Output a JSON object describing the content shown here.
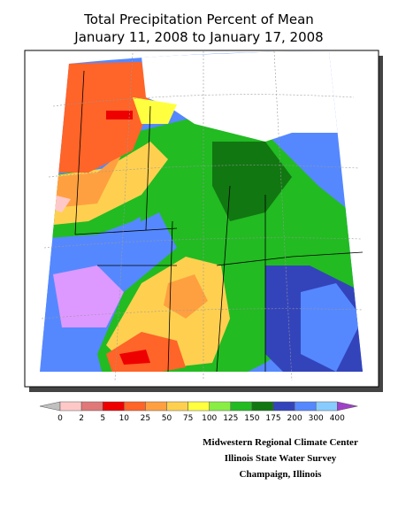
{
  "title": {
    "line1": "Total Precipitation Percent of Mean",
    "line2": "January 11, 2008 to January 17, 2008"
  },
  "legend": {
    "labels": [
      "0",
      "2",
      "5",
      "10",
      "25",
      "50",
      "75",
      "100",
      "125",
      "150",
      "175",
      "200",
      "300",
      "400"
    ],
    "below_color": "#c0c0c0",
    "above_color": "#a040c8",
    "colors": [
      "#ffc8c8",
      "#e07878",
      "#ee0000",
      "#ff6428",
      "#ffa040",
      "#ffd050",
      "#ffff40",
      "#88ee44",
      "#22bb22",
      "#117711",
      "#3344bb",
      "#5588ff",
      "#88ccff",
      "#dd99ff"
    ]
  },
  "credits": [
    "Midwestern Regional Climate Center",
    "Illinois State Water Survey",
    "Champaign, Illinois"
  ]
}
